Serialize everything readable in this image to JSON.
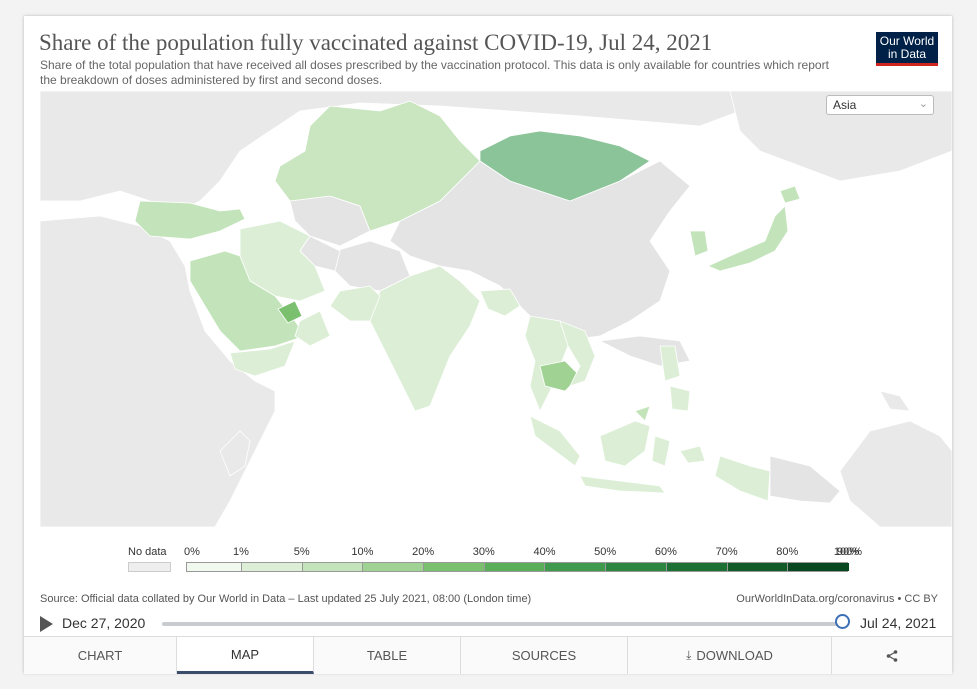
{
  "header": {
    "title": "Share of the population fully vaccinated against COVID-19, Jul 24, 2021",
    "subtitle": "Share of the total population that have received all doses prescribed by the vaccination protocol. This data is only available for countries which report the breakdown of doses administered by first and second doses.",
    "logo_line1": "Our World",
    "logo_line2": "in Data"
  },
  "region_select": {
    "value": "Asia"
  },
  "legend": {
    "no_data_label": "No data",
    "ticks": [
      "0%",
      "1%",
      "5%",
      "10%",
      "20%",
      "30%",
      "40%",
      "50%",
      "60%",
      "70%",
      "80%",
      "90%",
      "100%"
    ],
    "colors": [
      "#f1f8ee",
      "#dcefd6",
      "#c3e4ba",
      "#9fd293",
      "#7bc06f",
      "#5aae5a",
      "#3f9a4d",
      "#2c8640",
      "#1d7034",
      "#115b29",
      "#08471f"
    ],
    "no_data_color": "#eeeeee"
  },
  "footer": {
    "source": "Source: Official data collated by Our World in Data – Last updated 25 July 2021, 08:00 (London time)",
    "url": "OurWorldInData.org/coronavirus • CC BY"
  },
  "timeline": {
    "start_date": "Dec 27, 2020",
    "end_date": "Jul 24, 2021",
    "position_fraction": 1.0
  },
  "tabs": [
    {
      "label": "CHART",
      "active": false
    },
    {
      "label": "MAP",
      "active": true
    },
    {
      "label": "TABLE",
      "active": false
    },
    {
      "label": "SOURCES",
      "active": false
    },
    {
      "label": "DOWNLOAD",
      "active": false
    },
    {
      "label": "",
      "icon": "share-icon",
      "active": false
    }
  ],
  "map_colors": {
    "background": "#ffffff",
    "outside_region": "#e9e9e9",
    "no_data": "#e4e4e4",
    "border": "#ffffff"
  }
}
